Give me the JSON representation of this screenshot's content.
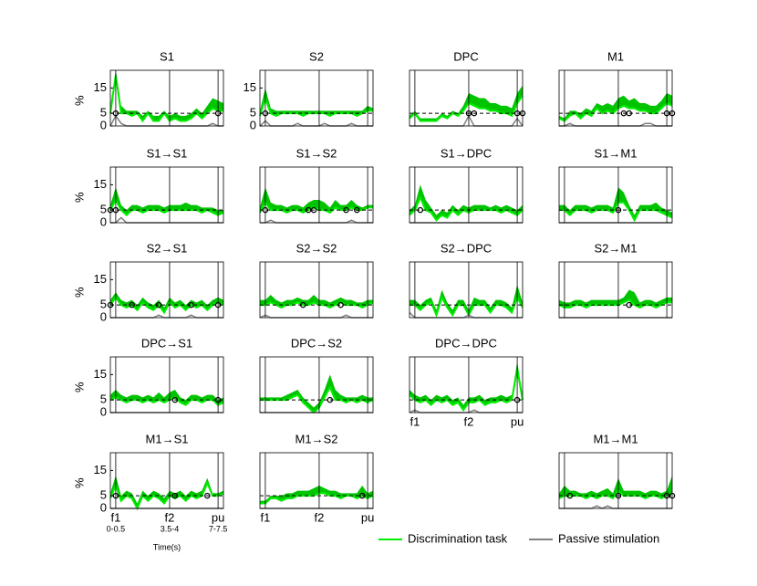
{
  "chart_data": [
    {
      "type": "line",
      "title": "S1",
      "values": [
        5,
        20,
        5,
        5,
        4,
        5,
        2,
        5,
        2,
        2,
        5,
        2,
        3,
        2,
        2,
        3,
        5,
        3,
        5,
        7,
        6,
        6
      ],
      "upper": [
        8,
        22,
        8,
        6,
        6,
        6,
        4,
        6,
        4,
        4,
        6,
        4,
        5,
        4,
        4,
        5,
        7,
        5,
        8,
        11,
        10,
        9
      ],
      "passive": [
        0,
        4,
        1,
        0,
        0,
        0,
        0,
        0,
        0,
        0,
        0,
        0,
        0,
        0,
        0,
        0,
        0,
        0,
        0,
        1,
        0,
        0
      ],
      "markers": [
        1,
        20
      ]
    },
    {
      "type": "line",
      "title": "S2",
      "values": [
        4,
        11,
        5,
        4,
        5,
        5,
        5,
        5,
        4,
        5,
        5,
        5,
        5,
        4,
        5,
        5,
        5,
        5,
        4,
        5,
        6,
        6
      ],
      "upper": [
        6,
        15,
        7,
        6,
        6,
        6,
        6,
        6,
        6,
        6,
        6,
        6,
        6,
        6,
        6,
        6,
        6,
        6,
        6,
        6,
        8,
        7
      ],
      "passive": [
        0,
        2,
        0,
        0,
        0,
        0,
        0,
        1,
        0,
        0,
        0,
        0,
        1,
        0,
        0,
        0,
        0,
        1,
        0,
        0,
        0,
        0
      ],
      "markers": [
        1
      ]
    },
    {
      "type": "line",
      "title": "DPC",
      "values": [
        3,
        5,
        2,
        2,
        2,
        2,
        4,
        3,
        5,
        4,
        6,
        9,
        8,
        7,
        7,
        6,
        6,
        5,
        5,
        4,
        9,
        12
      ],
      "upper": [
        4,
        6,
        3,
        3,
        3,
        3,
        5,
        4,
        6,
        5,
        8,
        13,
        12,
        11,
        11,
        9,
        9,
        8,
        8,
        7,
        13,
        16
      ],
      "passive": [
        0,
        0,
        0,
        0,
        0,
        0,
        0,
        0,
        0,
        0,
        0,
        4,
        0,
        0,
        0,
        0,
        0,
        0,
        0,
        0,
        3,
        0
      ],
      "markers": [
        11,
        12,
        20,
        21
      ]
    },
    {
      "type": "line",
      "title": "M1",
      "values": [
        3,
        2,
        4,
        5,
        3,
        5,
        4,
        7,
        5,
        6,
        5,
        7,
        8,
        7,
        7,
        6,
        6,
        5,
        5,
        7,
        9,
        8
      ],
      "upper": [
        4,
        3,
        6,
        6,
        5,
        7,
        6,
        9,
        8,
        9,
        8,
        11,
        12,
        10,
        11,
        9,
        9,
        8,
        8,
        10,
        13,
        12
      ],
      "passive": [
        0,
        0,
        1,
        0,
        0,
        0,
        0,
        0,
        0,
        0,
        0,
        0,
        0,
        0,
        0,
        0,
        1,
        1,
        0,
        0,
        0,
        0
      ],
      "markers": [
        12,
        13,
        20,
        21
      ]
    },
    {
      "type": "line",
      "title": "S1→S1",
      "values": [
        5,
        9,
        5,
        3,
        5,
        5,
        4,
        5,
        5,
        5,
        4,
        5,
        5,
        5,
        5,
        5,
        5,
        4,
        5,
        4,
        3,
        4
      ],
      "upper": [
        7,
        14,
        7,
        5,
        7,
        7,
        6,
        7,
        7,
        7,
        6,
        7,
        7,
        7,
        8,
        7,
        7,
        6,
        6,
        6,
        5,
        5
      ],
      "passive": [
        0,
        0,
        2,
        0,
        0,
        0,
        0,
        0,
        0,
        0,
        0,
        0,
        0,
        0,
        0,
        0,
        0,
        0,
        0,
        0,
        0,
        0
      ],
      "markers": [
        0,
        1
      ]
    },
    {
      "type": "line",
      "title": "S1→S2",
      "values": [
        4,
        8,
        5,
        5,
        5,
        4,
        5,
        5,
        4,
        5,
        6,
        5,
        5,
        4,
        6,
        5,
        5,
        6,
        5,
        5,
        6,
        6
      ],
      "upper": [
        6,
        14,
        8,
        7,
        7,
        6,
        7,
        7,
        6,
        8,
        9,
        9,
        8,
        6,
        9,
        7,
        7,
        9,
        7,
        6,
        7,
        7
      ],
      "passive": [
        0,
        0,
        1,
        0,
        0,
        0,
        0,
        0,
        0,
        0,
        0,
        0,
        0,
        0,
        0,
        0,
        0,
        1,
        0,
        0,
        0,
        0
      ],
      "markers": [
        1,
        9,
        10,
        16,
        18
      ]
    },
    {
      "type": "line",
      "title": "S1→DPC",
      "values": [
        3,
        5,
        10,
        5,
        4,
        1,
        3,
        2,
        5,
        3,
        5,
        4,
        5,
        5,
        5,
        5,
        5,
        4,
        5,
        4,
        3,
        5
      ],
      "upper": [
        5,
        7,
        15,
        9,
        6,
        3,
        5,
        4,
        7,
        5,
        7,
        6,
        7,
        7,
        7,
        6,
        7,
        6,
        7,
        6,
        5,
        7
      ],
      "passive": [
        0,
        0,
        0,
        0,
        0,
        0,
        0,
        0,
        0,
        0,
        0,
        0,
        0,
        0,
        0,
        0,
        0,
        0,
        0,
        0,
        0,
        0
      ],
      "markers": [
        2
      ]
    },
    {
      "type": "line",
      "title": "S1→M1",
      "values": [
        5,
        5,
        3,
        5,
        5,
        5,
        4,
        5,
        5,
        5,
        4,
        8,
        8,
        5,
        1,
        5,
        5,
        5,
        5,
        4,
        3,
        2
      ],
      "upper": [
        7,
        7,
        5,
        7,
        7,
        7,
        6,
        7,
        7,
        7,
        6,
        14,
        12,
        7,
        3,
        7,
        7,
        7,
        8,
        6,
        5,
        4
      ],
      "passive": [
        0,
        0,
        0,
        0,
        0,
        0,
        0,
        0,
        0,
        0,
        0,
        0,
        0,
        0,
        0,
        0,
        0,
        0,
        0,
        0,
        0,
        0
      ],
      "markers": [
        11
      ]
    },
    {
      "type": "line",
      "title": "S2→S1",
      "values": [
        5,
        8,
        5,
        4,
        5,
        3,
        6,
        4,
        3,
        5,
        2,
        6,
        4,
        5,
        3,
        5,
        4,
        5,
        3,
        5,
        6,
        5
      ],
      "upper": [
        7,
        10,
        7,
        6,
        7,
        5,
        8,
        6,
        5,
        7,
        4,
        8,
        6,
        7,
        5,
        7,
        6,
        7,
        5,
        7,
        8,
        7
      ],
      "passive": [
        0,
        0,
        0,
        0,
        0,
        0,
        0,
        0,
        0,
        1,
        0,
        0,
        0,
        0,
        0,
        1,
        0,
        0,
        0,
        0,
        0,
        0
      ],
      "markers": [
        0,
        4,
        9,
        15,
        20
      ]
    },
    {
      "type": "line",
      "title": "S2→S2",
      "values": [
        5,
        5,
        6,
        5,
        4,
        5,
        5,
        6,
        5,
        5,
        6,
        5,
        5,
        4,
        5,
        6,
        5,
        5,
        5,
        4,
        5,
        6
      ],
      "upper": [
        7,
        7,
        9,
        7,
        6,
        7,
        7,
        8,
        7,
        7,
        9,
        7,
        7,
        6,
        7,
        8,
        7,
        7,
        6,
        6,
        7,
        7
      ],
      "passive": [
        0,
        1,
        0,
        0,
        0,
        0,
        0,
        0,
        0,
        0,
        0,
        0,
        0,
        0,
        0,
        0,
        1,
        0,
        0,
        0,
        0,
        0
      ],
      "markers": [
        8,
        15
      ]
    },
    {
      "type": "line",
      "title": "S2→DPC",
      "values": [
        5,
        5,
        3,
        5,
        6,
        1,
        8,
        4,
        1,
        5,
        5,
        1,
        5,
        5,
        5,
        2,
        5,
        5,
        4,
        2,
        8,
        4
      ],
      "upper": [
        7,
        7,
        5,
        7,
        8,
        3,
        11,
        6,
        3,
        7,
        7,
        3,
        8,
        7,
        7,
        4,
        7,
        7,
        6,
        4,
        13,
        6
      ],
      "passive": [
        2,
        0,
        0,
        0,
        0,
        0,
        0,
        0,
        0,
        0,
        0,
        1,
        0,
        0,
        0,
        0,
        0,
        0,
        0,
        0,
        0,
        0
      ],
      "markers": []
    },
    {
      "type": "line",
      "title": "S2→M1",
      "values": [
        5,
        4,
        4,
        5,
        5,
        4,
        5,
        5,
        5,
        5,
        5,
        5,
        6,
        7,
        5,
        4,
        5,
        5,
        4,
        5,
        6,
        6
      ],
      "upper": [
        7,
        6,
        6,
        7,
        7,
        6,
        7,
        7,
        7,
        7,
        7,
        7,
        8,
        11,
        10,
        6,
        7,
        7,
        6,
        7,
        8,
        8
      ],
      "passive": [
        0,
        0,
        0,
        0,
        0,
        0,
        0,
        0,
        0,
        0,
        0,
        0,
        0,
        0,
        0,
        0,
        0,
        0,
        0,
        0,
        0,
        0
      ],
      "markers": [
        13
      ]
    },
    {
      "type": "line",
      "title": "DPC→S1",
      "values": [
        5,
        6,
        5,
        4,
        5,
        5,
        4,
        5,
        4,
        5,
        4,
        5,
        6,
        4,
        3,
        5,
        5,
        4,
        5,
        5,
        3,
        4
      ],
      "upper": [
        7,
        9,
        7,
        6,
        7,
        7,
        6,
        7,
        6,
        8,
        6,
        8,
        9,
        6,
        5,
        7,
        7,
        6,
        7,
        7,
        5,
        6
      ],
      "passive": [
        0,
        0,
        0,
        0,
        0,
        0,
        0,
        0,
        0,
        0,
        0,
        0,
        0,
        0,
        0,
        0,
        0,
        0,
        0,
        0,
        0,
        0
      ],
      "markers": [
        12,
        20
      ]
    },
    {
      "type": "line",
      "title": "DPC→S2",
      "values": [
        5,
        5,
        5,
        5,
        5,
        5,
        6,
        7,
        4,
        2,
        0,
        2,
        6,
        10,
        5,
        5,
        4,
        5,
        4,
        5,
        4,
        5
      ],
      "upper": [
        6,
        6,
        6,
        6,
        6,
        7,
        8,
        9,
        6,
        4,
        2,
        4,
        9,
        15,
        9,
        7,
        6,
        6,
        6,
        7,
        6,
        6
      ],
      "passive": [
        0,
        0,
        0,
        0,
        0,
        0,
        0,
        0,
        0,
        0,
        0,
        0,
        0,
        0,
        0,
        0,
        0,
        0,
        0,
        0,
        0,
        0
      ],
      "markers": [
        13
      ]
    },
    {
      "type": "line",
      "title": "DPC→DPC",
      "values": [
        7,
        5,
        4,
        5,
        3,
        5,
        4,
        5,
        3,
        4,
        1,
        4,
        4,
        5,
        3,
        4,
        4,
        5,
        4,
        5,
        17,
        5
      ],
      "upper": [
        9,
        7,
        6,
        7,
        5,
        7,
        6,
        7,
        5,
        6,
        3,
        6,
        6,
        7,
        5,
        6,
        6,
        7,
        6,
        7,
        20,
        7
      ],
      "passive": [
        0,
        1,
        0,
        0,
        0,
        0,
        0,
        0,
        0,
        0,
        0,
        0,
        1,
        0,
        0,
        0,
        0,
        0,
        0,
        0,
        0,
        0
      ],
      "markers": [
        20
      ]
    },
    {
      "type": "line",
      "title": "M1→S1",
      "values": [
        4,
        9,
        3,
        5,
        4,
        0,
        5,
        3,
        5,
        4,
        2,
        5,
        4,
        5,
        3,
        5,
        4,
        5,
        10,
        5,
        5,
        6
      ],
      "upper": [
        6,
        13,
        5,
        7,
        6,
        2,
        7,
        5,
        7,
        6,
        4,
        7,
        6,
        7,
        5,
        7,
        6,
        7,
        12,
        6,
        6,
        7
      ],
      "passive": [
        0,
        0,
        0,
        0,
        0,
        0,
        0,
        0,
        0,
        0,
        0,
        0,
        0,
        0,
        0,
        0,
        0,
        0,
        0,
        0,
        0,
        0
      ],
      "markers": [
        1,
        12,
        18
      ]
    },
    {
      "type": "line",
      "title": "M1→S2",
      "values": [
        2,
        2,
        4,
        4,
        3,
        4,
        4,
        5,
        5,
        5,
        5,
        6,
        6,
        5,
        5,
        4,
        5,
        5,
        4,
        5,
        4,
        5
      ],
      "upper": [
        3,
        3,
        5,
        5,
        5,
        6,
        6,
        7,
        7,
        7,
        8,
        9,
        8,
        7,
        7,
        6,
        6,
        6,
        6,
        9,
        6,
        7
      ],
      "passive": [
        0,
        0,
        0,
        0,
        0,
        0,
        0,
        0,
        0,
        0,
        0,
        0,
        0,
        0,
        0,
        0,
        0,
        0,
        0,
        0,
        0,
        0
      ],
      "markers": [
        19
      ]
    },
    {
      "type": "line",
      "title": "M1→M1",
      "values": [
        4,
        5,
        5,
        5,
        5,
        4,
        5,
        4,
        5,
        5,
        4,
        7,
        5,
        5,
        5,
        5,
        4,
        5,
        5,
        4,
        5,
        6
      ],
      "upper": [
        6,
        9,
        7,
        7,
        6,
        6,
        7,
        6,
        7,
        8,
        6,
        12,
        7,
        7,
        7,
        7,
        6,
        7,
        7,
        6,
        7,
        13
      ],
      "passive": [
        0,
        0,
        0,
        0,
        0,
        0,
        0,
        1,
        0,
        1,
        0,
        0,
        0,
        0,
        0,
        0,
        0,
        0,
        0,
        0,
        0,
        0
      ],
      "markers": [
        2,
        11,
        20,
        21
      ]
    }
  ],
  "axes": {
    "x": [
      0,
      1,
      2,
      3,
      4,
      5,
      6,
      7,
      8,
      9,
      10,
      11,
      12,
      13,
      14,
      15,
      16,
      17,
      18,
      19,
      20,
      21
    ],
    "xlim": [
      0,
      21
    ],
    "xticks": [
      {
        "value": 1,
        "label": "f1"
      },
      {
        "value": 11,
        "label": "f2"
      },
      {
        "value": 20,
        "label": "pu"
      }
    ],
    "xtick_sublabels": [
      "0-0.5",
      "3.5-4",
      "7-7.5"
    ],
    "xlabel": "Time(s)",
    "ylim": [
      0,
      22
    ],
    "yticks": [
      0,
      5,
      15
    ],
    "ylabel": "%",
    "chance": 5
  },
  "legend": [
    {
      "name": "Discrimination task",
      "color": "#00ee00",
      "band_color": "#00c400"
    },
    {
      "name": "Passive stimulation",
      "color": "#808080"
    }
  ]
}
